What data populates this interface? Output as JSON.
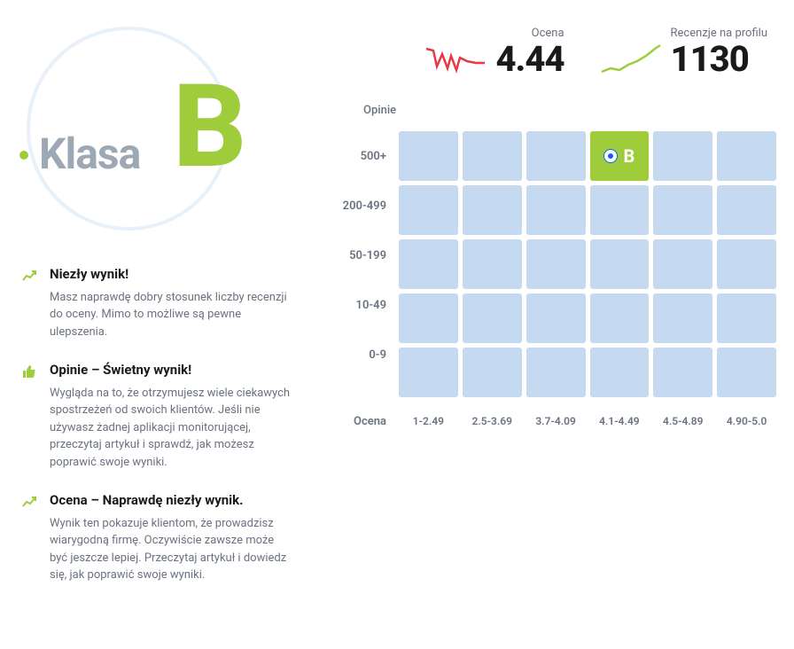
{
  "badge": {
    "label": "Klasa",
    "grade": "B",
    "accent_color": "#9ecc3b",
    "label_color": "#9ca8b4",
    "circle_border": "#e8f0fa"
  },
  "metrics": {
    "score": {
      "label": "Ocena",
      "value": "4.44",
      "spark_color": "#e63946",
      "trend": "down"
    },
    "reviews": {
      "label": "Recenzje na profilu",
      "value": "1130",
      "spark_color": "#9ecc3b",
      "trend": "up"
    }
  },
  "tips": [
    {
      "icon": "trend-up",
      "title": "Niezły wynik!",
      "body": "Masz naprawdę dobry stosunek liczby recenzji do oceny. Mimo to możliwe są pewne ulepszenia."
    },
    {
      "icon": "thumb-up",
      "title": "Opinie – Świetny wynik!",
      "body": "Wygląda na to, że otrzymujesz wiele ciekawych spostrzeżeń od swoich klientów. Jeśli nie używasz żadnej aplikacji monitorującej, przeczytaj artykuł i sprawdź, jak możesz poprawić swoje wyniki."
    },
    {
      "icon": "trend-up",
      "title": "Ocena – Naprawdę niezły wynik.",
      "body": "Wynik ten pokazuje klientom, że prowadzisz wiarygodną firmę. Oczywiście zawsze może być jeszcze lepiej. Przeczytaj artykuł i dowiedz się, jak poprawić swoje wyniki."
    }
  ],
  "matrix": {
    "y_axis_title": "Opinie",
    "x_axis_title": "Ocena",
    "rows": [
      "500+",
      "200-499",
      "50-199",
      "10-49",
      "0-9"
    ],
    "cols": [
      "1-2.49",
      "2.5-3.69",
      "3.7-4.09",
      "4.1-4.49",
      "4.5-4.89",
      "4.90-5.0"
    ],
    "cell_color": "#c5d9f0",
    "active_cell_color": "#9ecc3b",
    "active": {
      "row": 0,
      "col": 3,
      "letter": "B",
      "marker_color": "#0b5fff"
    }
  }
}
